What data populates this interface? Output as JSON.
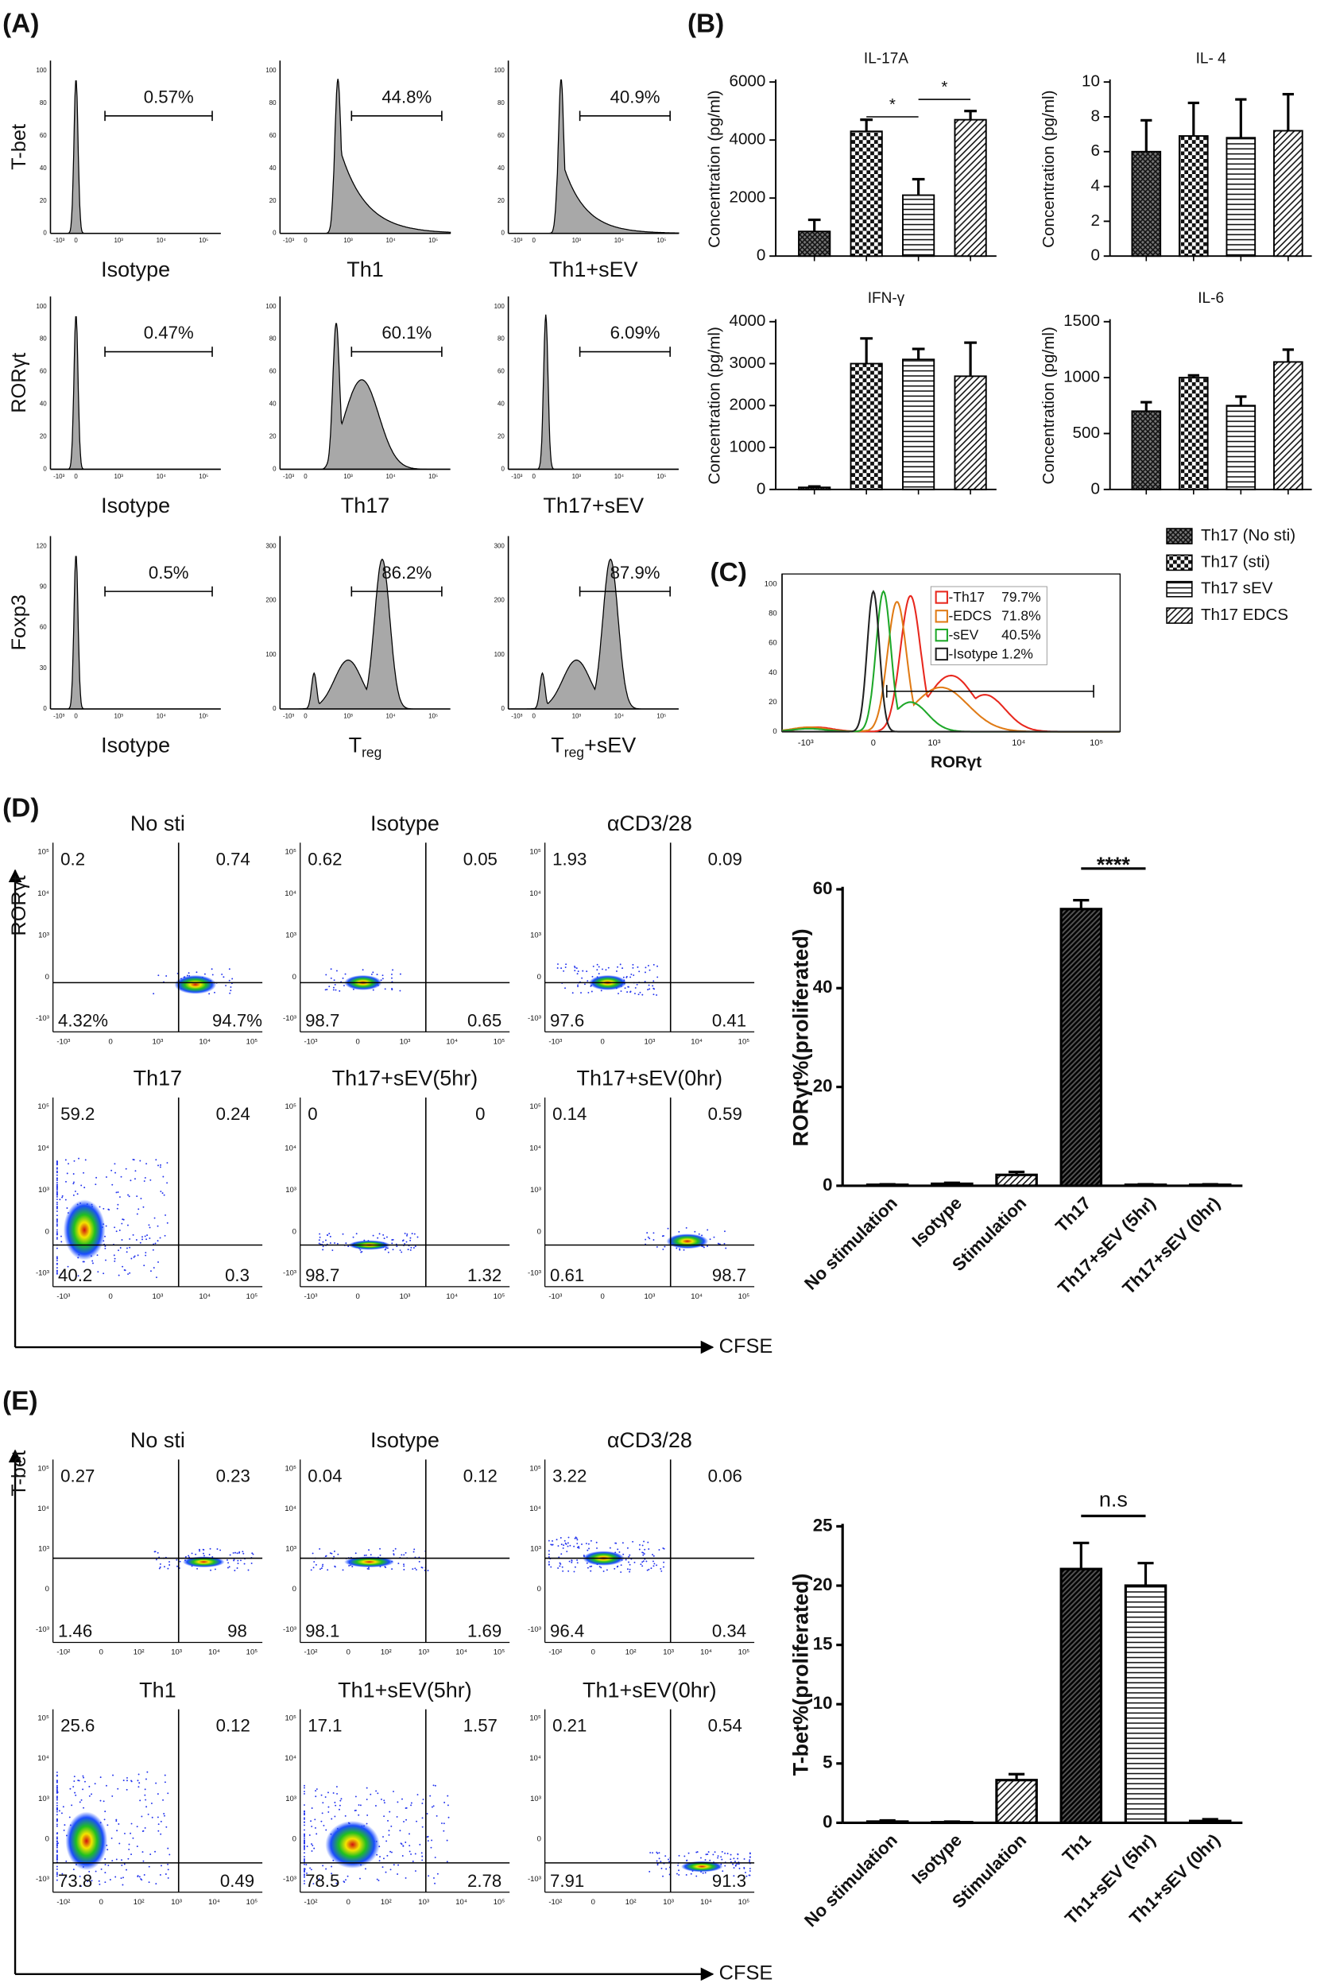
{
  "panel_labels": [
    "(A)",
    "(B)",
    "(C)",
    "(D)",
    "(E)"
  ],
  "panel_a": {
    "row_labels": [
      "T-bet",
      "RORγt",
      "Foxp3"
    ],
    "xticks": [
      "-10³",
      "0",
      "10³",
      "10⁴",
      "10⁵"
    ],
    "plots": [
      {
        "caption": "Isotype",
        "gate": "0.57%",
        "yticks": [
          "0",
          "20",
          "40",
          "60",
          "80",
          "100"
        ]
      },
      {
        "caption": "Th1",
        "gate": "44.8%",
        "yticks": [
          "0",
          "20",
          "40",
          "60",
          "80",
          "100"
        ]
      },
      {
        "caption": "Th1+sEV",
        "gate": "40.9%",
        "yticks": [
          "0",
          "20",
          "40",
          "60",
          "80",
          "100"
        ]
      },
      {
        "caption": "Isotype",
        "gate": "0.47%",
        "yticks": [
          "0",
          "20",
          "40",
          "60",
          "80",
          "100"
        ]
      },
      {
        "caption": "Th17",
        "gate": "60.1%",
        "yticks": [
          "0",
          "20",
          "40",
          "60",
          "80",
          "100"
        ]
      },
      {
        "caption": "Th17+sEV",
        "gate": "6.09%",
        "yticks": [
          "0",
          "20",
          "40",
          "60",
          "80",
          "100"
        ]
      },
      {
        "caption": "Isotype",
        "gate": "0.5%",
        "yticks": [
          "0",
          "30",
          "60",
          "90",
          "120"
        ]
      },
      {
        "caption": "T",
        "caption_sub": "reg",
        "gate": "86.2%",
        "yticks": [
          "0",
          "100",
          "200",
          "300"
        ]
      },
      {
        "caption": "T",
        "caption_sub": "reg",
        "caption_suffix": "+sEV",
        "gate": "87.9%",
        "yticks": [
          "0",
          "100",
          "200",
          "300"
        ]
      }
    ]
  },
  "legend_b": {
    "entries": [
      "Th17 (No sti)",
      "Th17 (sti)",
      "Th17 sEV",
      "Th17 EDCS"
    ],
    "patterns": [
      "crosshatch",
      "checker",
      "hlines",
      "diag"
    ]
  },
  "panel_c": {
    "xlabel": "RORγt",
    "xticks": [
      "-10³",
      "0",
      "10³",
      "10⁴",
      "10⁵"
    ],
    "yticks": [
      "0",
      "20",
      "40",
      "60",
      "80",
      "100"
    ],
    "legend": [
      {
        "name": "-Th17",
        "label": "79.7%",
        "color": "#e8281e"
      },
      {
        "name": "-EDCS",
        "label": "71.8%",
        "color": "#e07b16"
      },
      {
        "name": "-sEV",
        "label": "40.5%",
        "color": "#1fa82a"
      },
      {
        "name": "-Isotype",
        "label": "1.2%",
        "color": "#222222"
      }
    ]
  },
  "panel_d": {
    "yaxis": "RORγt",
    "xaxis": "CFSE",
    "xticks": [
      "-10³",
      "0",
      "10³",
      "10⁴",
      "10⁵"
    ],
    "yticks": [
      "10⁵",
      "10⁴",
      "10³",
      "0",
      "-10³"
    ],
    "plots": [
      {
        "title": "No sti",
        "quadrants": [
          "0.2",
          "0.74",
          "4.32%",
          "94.7%"
        ]
      },
      {
        "title": "Isotype",
        "quadrants": [
          "0.62",
          "0.05",
          "98.7",
          "0.65"
        ]
      },
      {
        "title": "αCD3/28",
        "quadrants": [
          "1.93",
          "0.09",
          "97.6",
          "0.41"
        ]
      },
      {
        "title": "Th17",
        "quadrants": [
          "59.2",
          "0.24",
          "40.2",
          "0.3"
        ]
      },
      {
        "title": "Th17+sEV(5hr)",
        "quadrants": [
          "0",
          "0",
          "98.7",
          "1.32"
        ]
      },
      {
        "title": "Th17+sEV(0hr)",
        "quadrants": [
          "0.14",
          "0.59",
          "0.61",
          "98.7"
        ]
      }
    ]
  },
  "panel_e": {
    "yaxis": "T-bet",
    "xaxis": "CFSE",
    "xticks": [
      "-10²",
      "0",
      "10²",
      "10³",
      "10⁴",
      "10⁵"
    ],
    "yticks": [
      "10⁵",
      "10⁴",
      "10³",
      "0",
      "-10³"
    ],
    "plots": [
      {
        "title": "No sti",
        "quadrants": [
          "0.27",
          "0.23",
          "1.46",
          "98"
        ]
      },
      {
        "title": "Isotype",
        "quadrants": [
          "0.04",
          "0.12",
          "98.1",
          "1.69"
        ]
      },
      {
        "title": "αCD3/28",
        "quadrants": [
          "3.22",
          "0.06",
          "96.4",
          "0.34"
        ]
      },
      {
        "title": "Th1",
        "quadrants": [
          "25.6",
          "0.12",
          "73.8",
          "0.49"
        ]
      },
      {
        "title": "Th1+sEV(5hr)",
        "quadrants": [
          "17.1",
          "1.57",
          "78.5",
          "2.78"
        ]
      },
      {
        "title": "Th1+sEV(0hr)",
        "quadrants": [
          "0.21",
          "0.54",
          "7.91",
          "91.3"
        ]
      }
    ]
  },
  "chart_data": [
    {
      "type": "bar",
      "title": "IL-17A",
      "ylabel": "Concentration (pg/ml)",
      "values": [
        850,
        4300,
        2100,
        4700
      ],
      "errors": [
        400,
        400,
        550,
        300
      ],
      "patterns": [
        "crosshatch",
        "checker",
        "hlines",
        "diag"
      ],
      "ylim": [
        0,
        6000
      ],
      "yticks": [
        0,
        2000,
        4000,
        6000
      ],
      "annotations": [
        "*",
        "*"
      ]
    },
    {
      "type": "bar",
      "title": "IL- 4",
      "ylabel": "Concentration (pg/ml)",
      "values": [
        6.0,
        6.9,
        6.8,
        7.2
      ],
      "errors": [
        1.8,
        1.9,
        2.2,
        2.1
      ],
      "patterns": [
        "crosshatch",
        "checker",
        "hlines",
        "diag"
      ],
      "ylim": [
        0,
        10
      ],
      "yticks": [
        0,
        2,
        4,
        6,
        8,
        10
      ]
    },
    {
      "type": "bar",
      "title": "IFN-γ",
      "ylabel": "Concentration (pg/ml)",
      "values": [
        50,
        3000,
        3100,
        2700
      ],
      "errors": [
        20,
        600,
        250,
        800
      ],
      "patterns": [
        "crosshatch",
        "checker",
        "hlines",
        "diag"
      ],
      "ylim": [
        0,
        4000
      ],
      "yticks": [
        0,
        1000,
        2000,
        3000,
        4000
      ]
    },
    {
      "type": "bar",
      "title": "IL-6",
      "ylabel": "Concentration (pg/ml)",
      "values": [
        700,
        1000,
        750,
        1140
      ],
      "errors": [
        80,
        20,
        80,
        110
      ],
      "patterns": [
        "crosshatch",
        "checker",
        "hlines",
        "diag"
      ],
      "ylim": [
        0,
        1500
      ],
      "yticks": [
        0,
        500,
        1000,
        1500
      ]
    },
    {
      "type": "bar",
      "ylabel": "RORγt%(proliferated)",
      "categories": [
        "No stimulation",
        "Isotype",
        "Stimulation",
        "Th17",
        "Th17+sEV (5hr)",
        "Th17+sEV (0hr)"
      ],
      "values": [
        0.2,
        0.4,
        2.2,
        56,
        0.2,
        0.2
      ],
      "errors": [
        0.1,
        0.2,
        0.6,
        1.8,
        0.1,
        0.1
      ],
      "patterns": [
        "none",
        "none",
        "diag",
        "diagdark",
        "hlines",
        "none"
      ],
      "ylim": [
        0,
        60
      ],
      "yticks": [
        0,
        20,
        40,
        60
      ],
      "annotations": [
        "****"
      ]
    },
    {
      "type": "bar",
      "ylabel": "T-bet%(proliferated)",
      "categories": [
        "No stimulation",
        "Isotype",
        "Stimulation",
        "Th1",
        "Th1+sEV (5hr)",
        "Th1+sEV (0hr)"
      ],
      "values": [
        0.1,
        0.05,
        3.6,
        21.4,
        20,
        0.15
      ],
      "errors": [
        0.1,
        0.05,
        0.5,
        2.2,
        1.9,
        0.15
      ],
      "patterns": [
        "none",
        "none",
        "diag",
        "diagdark",
        "hlines",
        "none"
      ],
      "ylim": [
        0,
        25
      ],
      "yticks": [
        0,
        5,
        10,
        15,
        20,
        25
      ],
      "annotations": [
        "n.s"
      ]
    }
  ]
}
